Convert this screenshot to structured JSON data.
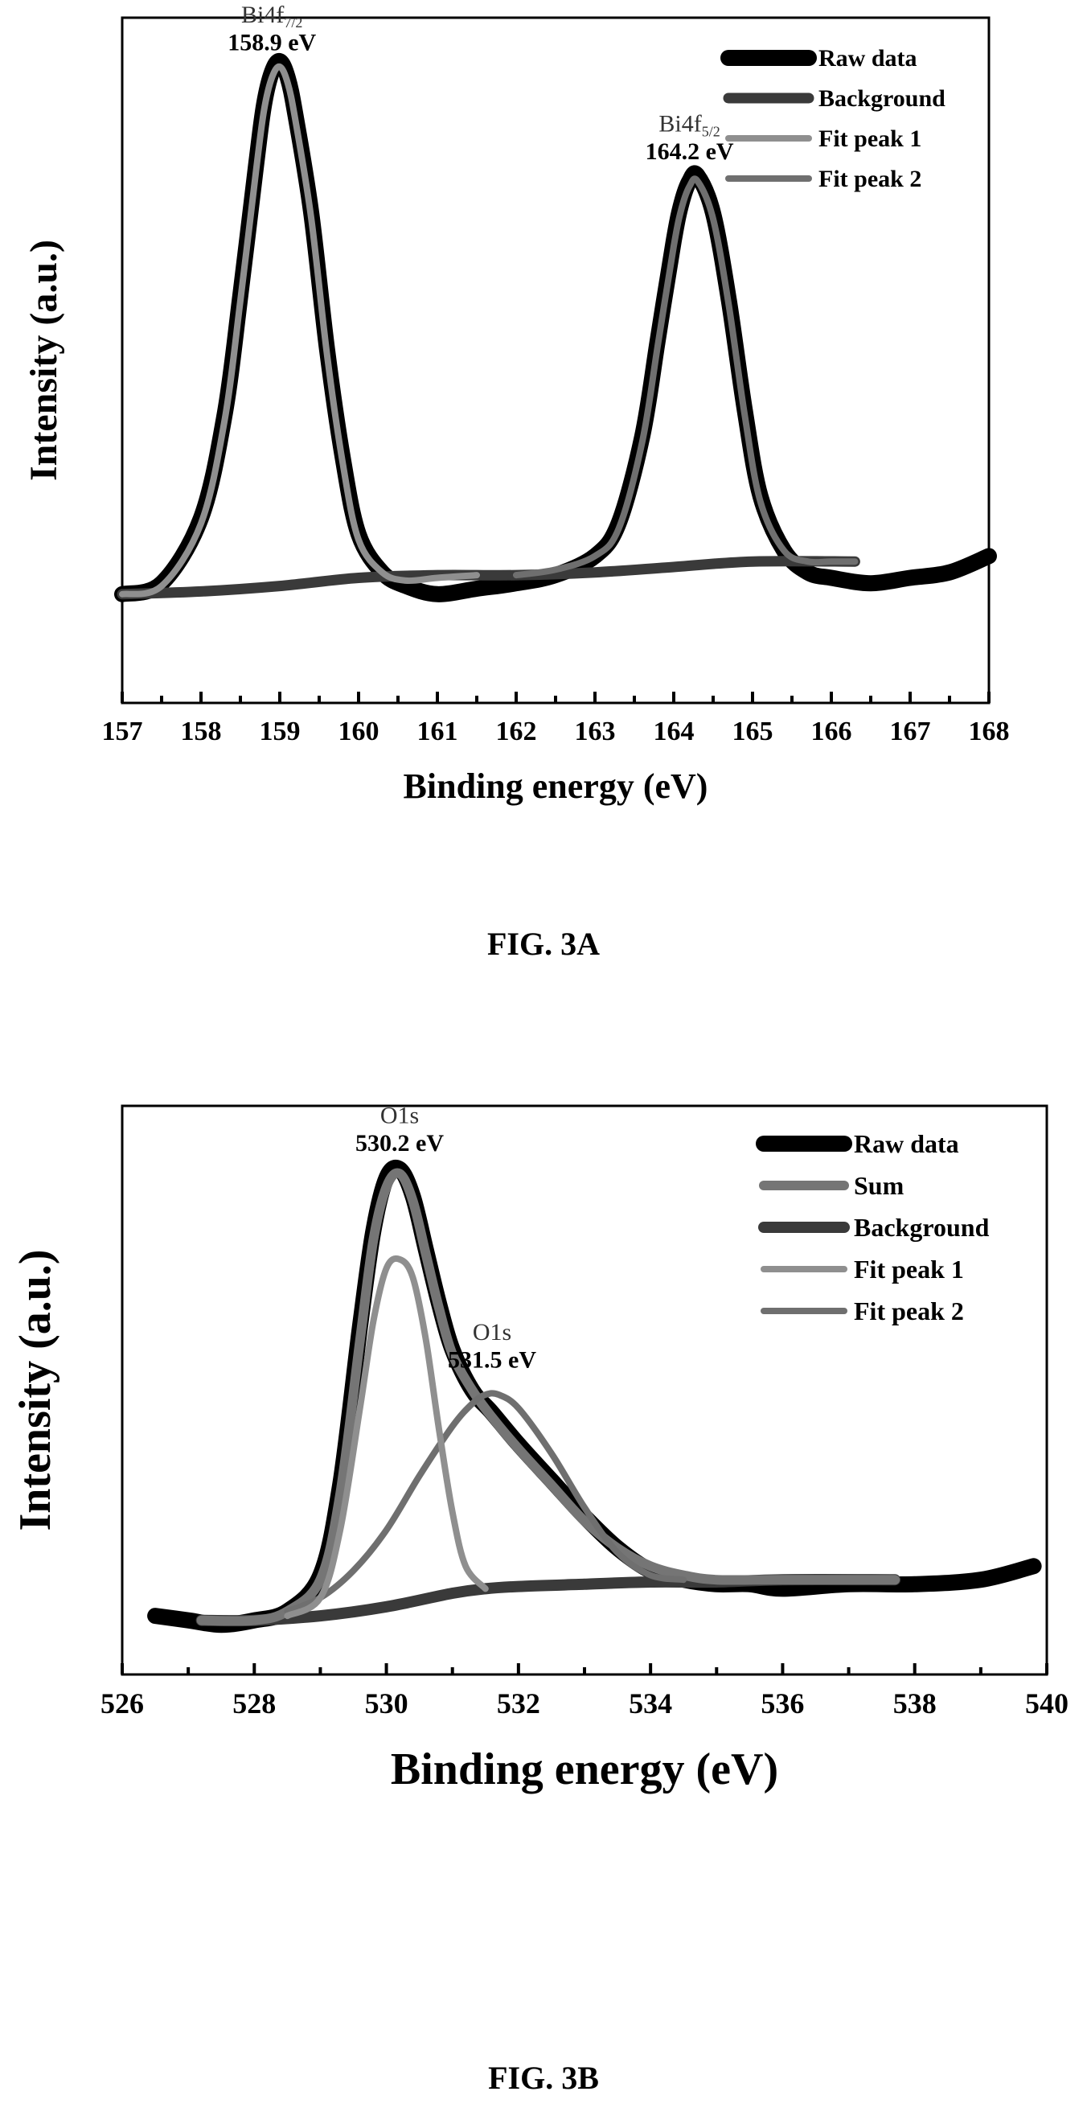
{
  "page": {
    "figure_a_caption": "FIG. 3A",
    "figure_b_caption": "FIG. 3B"
  },
  "colors": {
    "raw": "#000000",
    "background": "#3a3a3a",
    "fit1": "#8f8f8f",
    "fit2": "#6f6f6f",
    "sum": "#757575"
  },
  "chart_data": [
    {
      "type": "line",
      "title": "",
      "xlabel": "Binding energy (eV)",
      "ylabel": "Intensity (a.u.)",
      "xlim": [
        157,
        168
      ],
      "ylim": [
        -0.2,
        1.06
      ],
      "xticks": [
        157,
        158,
        159,
        160,
        161,
        162,
        163,
        164,
        165,
        166,
        167,
        168
      ],
      "legend_position": "top-right",
      "series": [
        {
          "name": "Raw data",
          "color": "#000000",
          "x": [
            157.0,
            157.5,
            158.0,
            158.3,
            158.5,
            158.7,
            158.8,
            158.9,
            159.0,
            159.1,
            159.2,
            159.4,
            159.6,
            159.8,
            160.0,
            160.3,
            160.6,
            161.0,
            161.5,
            162.0,
            162.5,
            163.0,
            163.3,
            163.6,
            163.8,
            164.0,
            164.1,
            164.2,
            164.3,
            164.5,
            164.7,
            164.9,
            165.1,
            165.4,
            165.7,
            166.0,
            166.5,
            167.0,
            167.5,
            168.0
          ],
          "y": [
            0.0,
            0.02,
            0.14,
            0.33,
            0.55,
            0.79,
            0.9,
            0.96,
            0.98,
            0.95,
            0.88,
            0.7,
            0.45,
            0.25,
            0.11,
            0.04,
            0.015,
            0.0,
            0.01,
            0.02,
            0.035,
            0.07,
            0.13,
            0.29,
            0.47,
            0.65,
            0.72,
            0.76,
            0.77,
            0.7,
            0.54,
            0.34,
            0.18,
            0.08,
            0.04,
            0.03,
            0.02,
            0.03,
            0.04,
            0.07
          ]
        },
        {
          "name": "Background",
          "color": "#3a3a3a",
          "x": [
            157.0,
            158.0,
            159.0,
            160.0,
            161.0,
            162.0,
            163.0,
            164.0,
            165.0,
            166.3
          ],
          "y": [
            0.0,
            0.005,
            0.015,
            0.03,
            0.035,
            0.035,
            0.04,
            0.05,
            0.06,
            0.06
          ]
        },
        {
          "name": "Fit peak 1",
          "color": "#8f8f8f",
          "x": [
            157.0,
            157.5,
            158.0,
            158.3,
            158.5,
            158.7,
            158.8,
            158.9,
            159.0,
            159.1,
            159.2,
            159.4,
            159.6,
            159.8,
            160.0,
            160.3,
            160.6,
            161.0,
            161.5
          ],
          "y": [
            0.0,
            0.015,
            0.13,
            0.32,
            0.54,
            0.78,
            0.89,
            0.95,
            0.97,
            0.94,
            0.87,
            0.69,
            0.44,
            0.24,
            0.1,
            0.04,
            0.025,
            0.03,
            0.035
          ]
        },
        {
          "name": "Fit peak 2",
          "color": "#6f6f6f",
          "x": [
            162.0,
            162.5,
            163.0,
            163.3,
            163.6,
            163.8,
            164.0,
            164.1,
            164.2,
            164.3,
            164.5,
            164.7,
            164.9,
            165.1,
            165.4,
            165.7,
            166.0,
            166.3
          ],
          "y": [
            0.035,
            0.045,
            0.07,
            0.12,
            0.28,
            0.46,
            0.64,
            0.71,
            0.75,
            0.76,
            0.69,
            0.53,
            0.33,
            0.17,
            0.08,
            0.06,
            0.06,
            0.06
          ]
        }
      ],
      "annotations": [
        {
          "text": "Bi4f",
          "sub": "7/2",
          "value": "158.9 eV",
          "x": 158.9,
          "y": 1.0
        },
        {
          "text": "Bi4f",
          "sub": "5/2",
          "value": "164.2 eV",
          "x": 164.2,
          "y": 0.8
        }
      ]
    },
    {
      "type": "line",
      "title": "",
      "xlabel": "Binding energy (eV)",
      "ylabel": "Intensity (a.u.)",
      "xlim": [
        526,
        540
      ],
      "ylim": [
        -0.12,
        1.14
      ],
      "xticks": [
        526,
        528,
        530,
        532,
        534,
        536,
        538,
        540
      ],
      "legend_position": "top-right",
      "series": [
        {
          "name": "Raw data",
          "color": "#000000",
          "x": [
            526.5,
            527.0,
            527.5,
            528.0,
            528.5,
            529.0,
            529.3,
            529.6,
            529.8,
            530.0,
            530.2,
            530.4,
            530.6,
            530.8,
            531.0,
            531.3,
            531.6,
            532.0,
            532.5,
            533.0,
            533.5,
            534.0,
            534.5,
            535.0,
            535.5,
            536.0,
            537.0,
            538.0,
            539.0,
            539.8
          ],
          "y": [
            0.01,
            0.0,
            -0.01,
            0.0,
            0.02,
            0.1,
            0.3,
            0.65,
            0.86,
            0.98,
            1.0,
            0.94,
            0.82,
            0.7,
            0.6,
            0.51,
            0.46,
            0.39,
            0.31,
            0.23,
            0.16,
            0.11,
            0.09,
            0.08,
            0.08,
            0.07,
            0.08,
            0.08,
            0.09,
            0.12
          ]
        },
        {
          "name": "Sum",
          "color": "#757575",
          "x": [
            527.2,
            528.0,
            528.5,
            529.0,
            529.3,
            529.6,
            529.8,
            530.0,
            530.2,
            530.4,
            530.6,
            530.8,
            531.0,
            531.3,
            531.6,
            532.0,
            532.5,
            533.0,
            533.5,
            534.0,
            534.5,
            535.0,
            536.0,
            537.7
          ],
          "y": [
            0.0,
            0.0,
            0.02,
            0.09,
            0.28,
            0.62,
            0.84,
            0.96,
            0.99,
            0.93,
            0.81,
            0.69,
            0.59,
            0.51,
            0.45,
            0.38,
            0.3,
            0.22,
            0.16,
            0.12,
            0.1,
            0.09,
            0.09,
            0.09
          ]
        },
        {
          "name": "Background",
          "color": "#3a3a3a",
          "x": [
            527.2,
            528.0,
            529.0,
            530.0,
            531.0,
            531.5,
            532.0,
            533.0,
            534.0,
            535.0,
            536.0,
            537.7
          ],
          "y": [
            0.0,
            0.0,
            0.01,
            0.03,
            0.06,
            0.07,
            0.075,
            0.08,
            0.085,
            0.085,
            0.09,
            0.09
          ]
        },
        {
          "name": "Fit peak 1",
          "color": "#8f8f8f",
          "x": [
            528.5,
            529.0,
            529.3,
            529.6,
            529.8,
            530.0,
            530.2,
            530.4,
            530.6,
            530.8,
            531.0,
            531.2,
            531.5
          ],
          "y": [
            0.01,
            0.05,
            0.2,
            0.47,
            0.66,
            0.78,
            0.8,
            0.76,
            0.62,
            0.42,
            0.24,
            0.12,
            0.07
          ]
        },
        {
          "name": "Fit peak 2",
          "color": "#6f6f6f",
          "x": [
            528.5,
            529.0,
            529.5,
            530.0,
            530.5,
            531.0,
            531.3,
            531.5,
            531.7,
            532.0,
            532.5,
            533.0,
            533.5,
            534.0,
            534.5
          ],
          "y": [
            0.02,
            0.05,
            0.11,
            0.2,
            0.32,
            0.43,
            0.48,
            0.5,
            0.5,
            0.47,
            0.37,
            0.25,
            0.15,
            0.1,
            0.09
          ]
        }
      ],
      "annotations": [
        {
          "text": "O1s",
          "sub": "",
          "value": "530.2 eV",
          "x": 530.2,
          "y": 1.04
        },
        {
          "text": "O1s",
          "sub": "",
          "value": "531.5 eV",
          "x": 531.6,
          "y": 0.56
        }
      ]
    }
  ]
}
